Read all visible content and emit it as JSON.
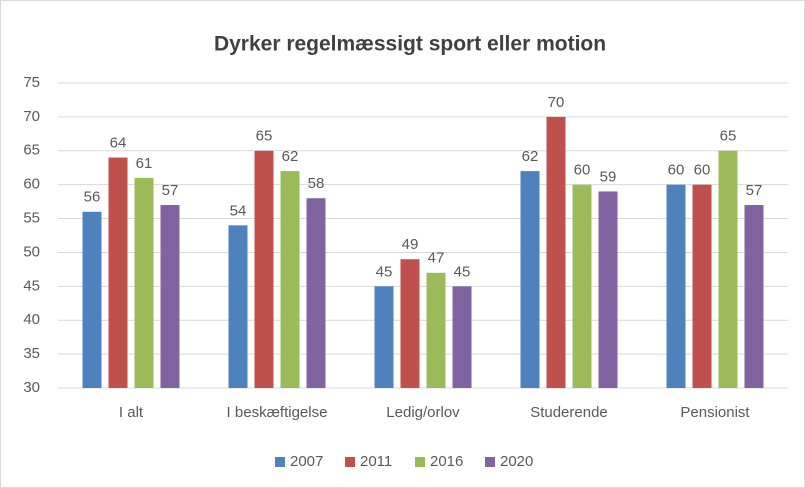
{
  "chart_data": {
    "type": "bar",
    "title": "Dyrker regelmæssigt sport eller motion",
    "categories": [
      "I alt",
      "I beskæftigelse",
      "Ledig/orlov",
      "Studerende",
      "Pensionist"
    ],
    "series": [
      {
        "name": "2007",
        "color": "#4f81bd",
        "values": [
          56,
          54,
          45,
          62,
          60
        ]
      },
      {
        "name": "2011",
        "color": "#c0504d",
        "values": [
          64,
          65,
          49,
          70,
          60
        ]
      },
      {
        "name": "2016",
        "color": "#9bbb59",
        "values": [
          61,
          62,
          47,
          60,
          65
        ]
      },
      {
        "name": "2020",
        "color": "#8064a2",
        "values": [
          57,
          58,
          45,
          59,
          57
        ]
      }
    ],
    "ylim": [
      30,
      75
    ],
    "yticks": [
      30,
      35,
      40,
      45,
      50,
      55,
      60,
      65,
      70,
      75
    ],
    "grid": true,
    "legend": "bottom"
  }
}
